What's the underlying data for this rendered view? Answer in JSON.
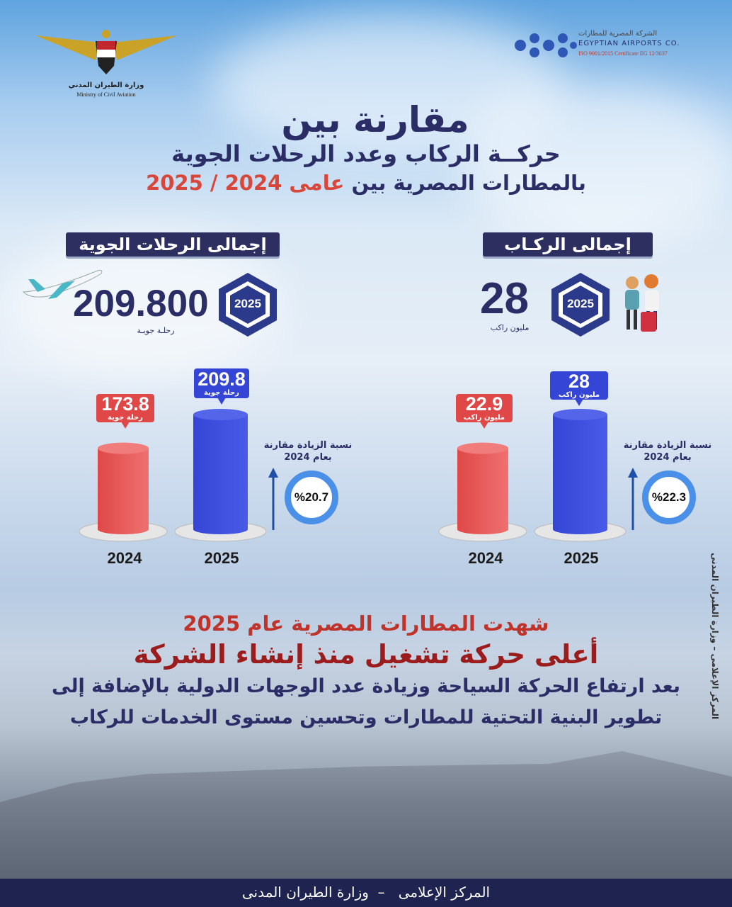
{
  "logos": {
    "ministry": {
      "arabic": "وزارة الطيران المدني",
      "english": "Ministry of Civil Aviation"
    },
    "company": {
      "arabic": "الشركة المصرية للمطارات",
      "english": "EGYPTIAN AIRPORTS CO.",
      "iso": "ISO 9001/2015 Certificate EG 12/3037"
    }
  },
  "title": {
    "line1": "مقارنة بين",
    "line2": "حركــة الركاب وعدد الرحلات الجوية",
    "line3_navy": "بالمطارات المصرية بين",
    "line3_red": "عامى 2024 / 2025"
  },
  "flights": {
    "header": "إجمالى الرحلات الجوية",
    "total": "209.800",
    "unit": "رحلـة جويـة",
    "badge_year": "2025",
    "icon": "airplane-icon",
    "growth_label": "نسبة الزيادة مقارنة بعام 2024",
    "growth_value": "%20.7"
  },
  "passengers": {
    "header": "إجمالى الركـاب",
    "total": "28",
    "unit": "مليون راكب",
    "badge_year": "2025",
    "icon": "travelers-icon",
    "growth_label": "نسبة الزيادة مقارنة بعام 2024",
    "growth_value": "%22.3"
  },
  "chart_data": [
    {
      "type": "bar",
      "title": "",
      "categories": [
        "2024",
        "2025"
      ],
      "values": [
        173.8,
        209.8
      ],
      "data_labels": [
        "173.8",
        "209.8"
      ],
      "unit_label": "رحلة جوية",
      "colors": [
        "#e04848",
        "#3546d6"
      ]
    },
    {
      "type": "bar",
      "title": "",
      "categories": [
        "2024",
        "2025"
      ],
      "values": [
        22.9,
        28
      ],
      "data_labels": [
        "22.9",
        "28"
      ],
      "unit_label": "مليون راكب",
      "colors": [
        "#e04848",
        "#3546d6"
      ]
    }
  ],
  "summary": {
    "line1": "شهدت المطارات المصرية عام 2025",
    "line2": "أعلى حركة تشغيل منذ إنشاء الشركة",
    "line3": "بعد ارتفاع الحركة السياحة وزيادة عدد الوجهات الدولية بالإضافة إلى",
    "line4": "تطوير البنية التحتية للمطارات وتحسين مستوى الخدمات للركاب"
  },
  "side_credit": "المركز الإعلامى – وزارة الطيران المدنى",
  "footer": "المركز الإعلامى   –  وزارة الطيران المدنى"
}
